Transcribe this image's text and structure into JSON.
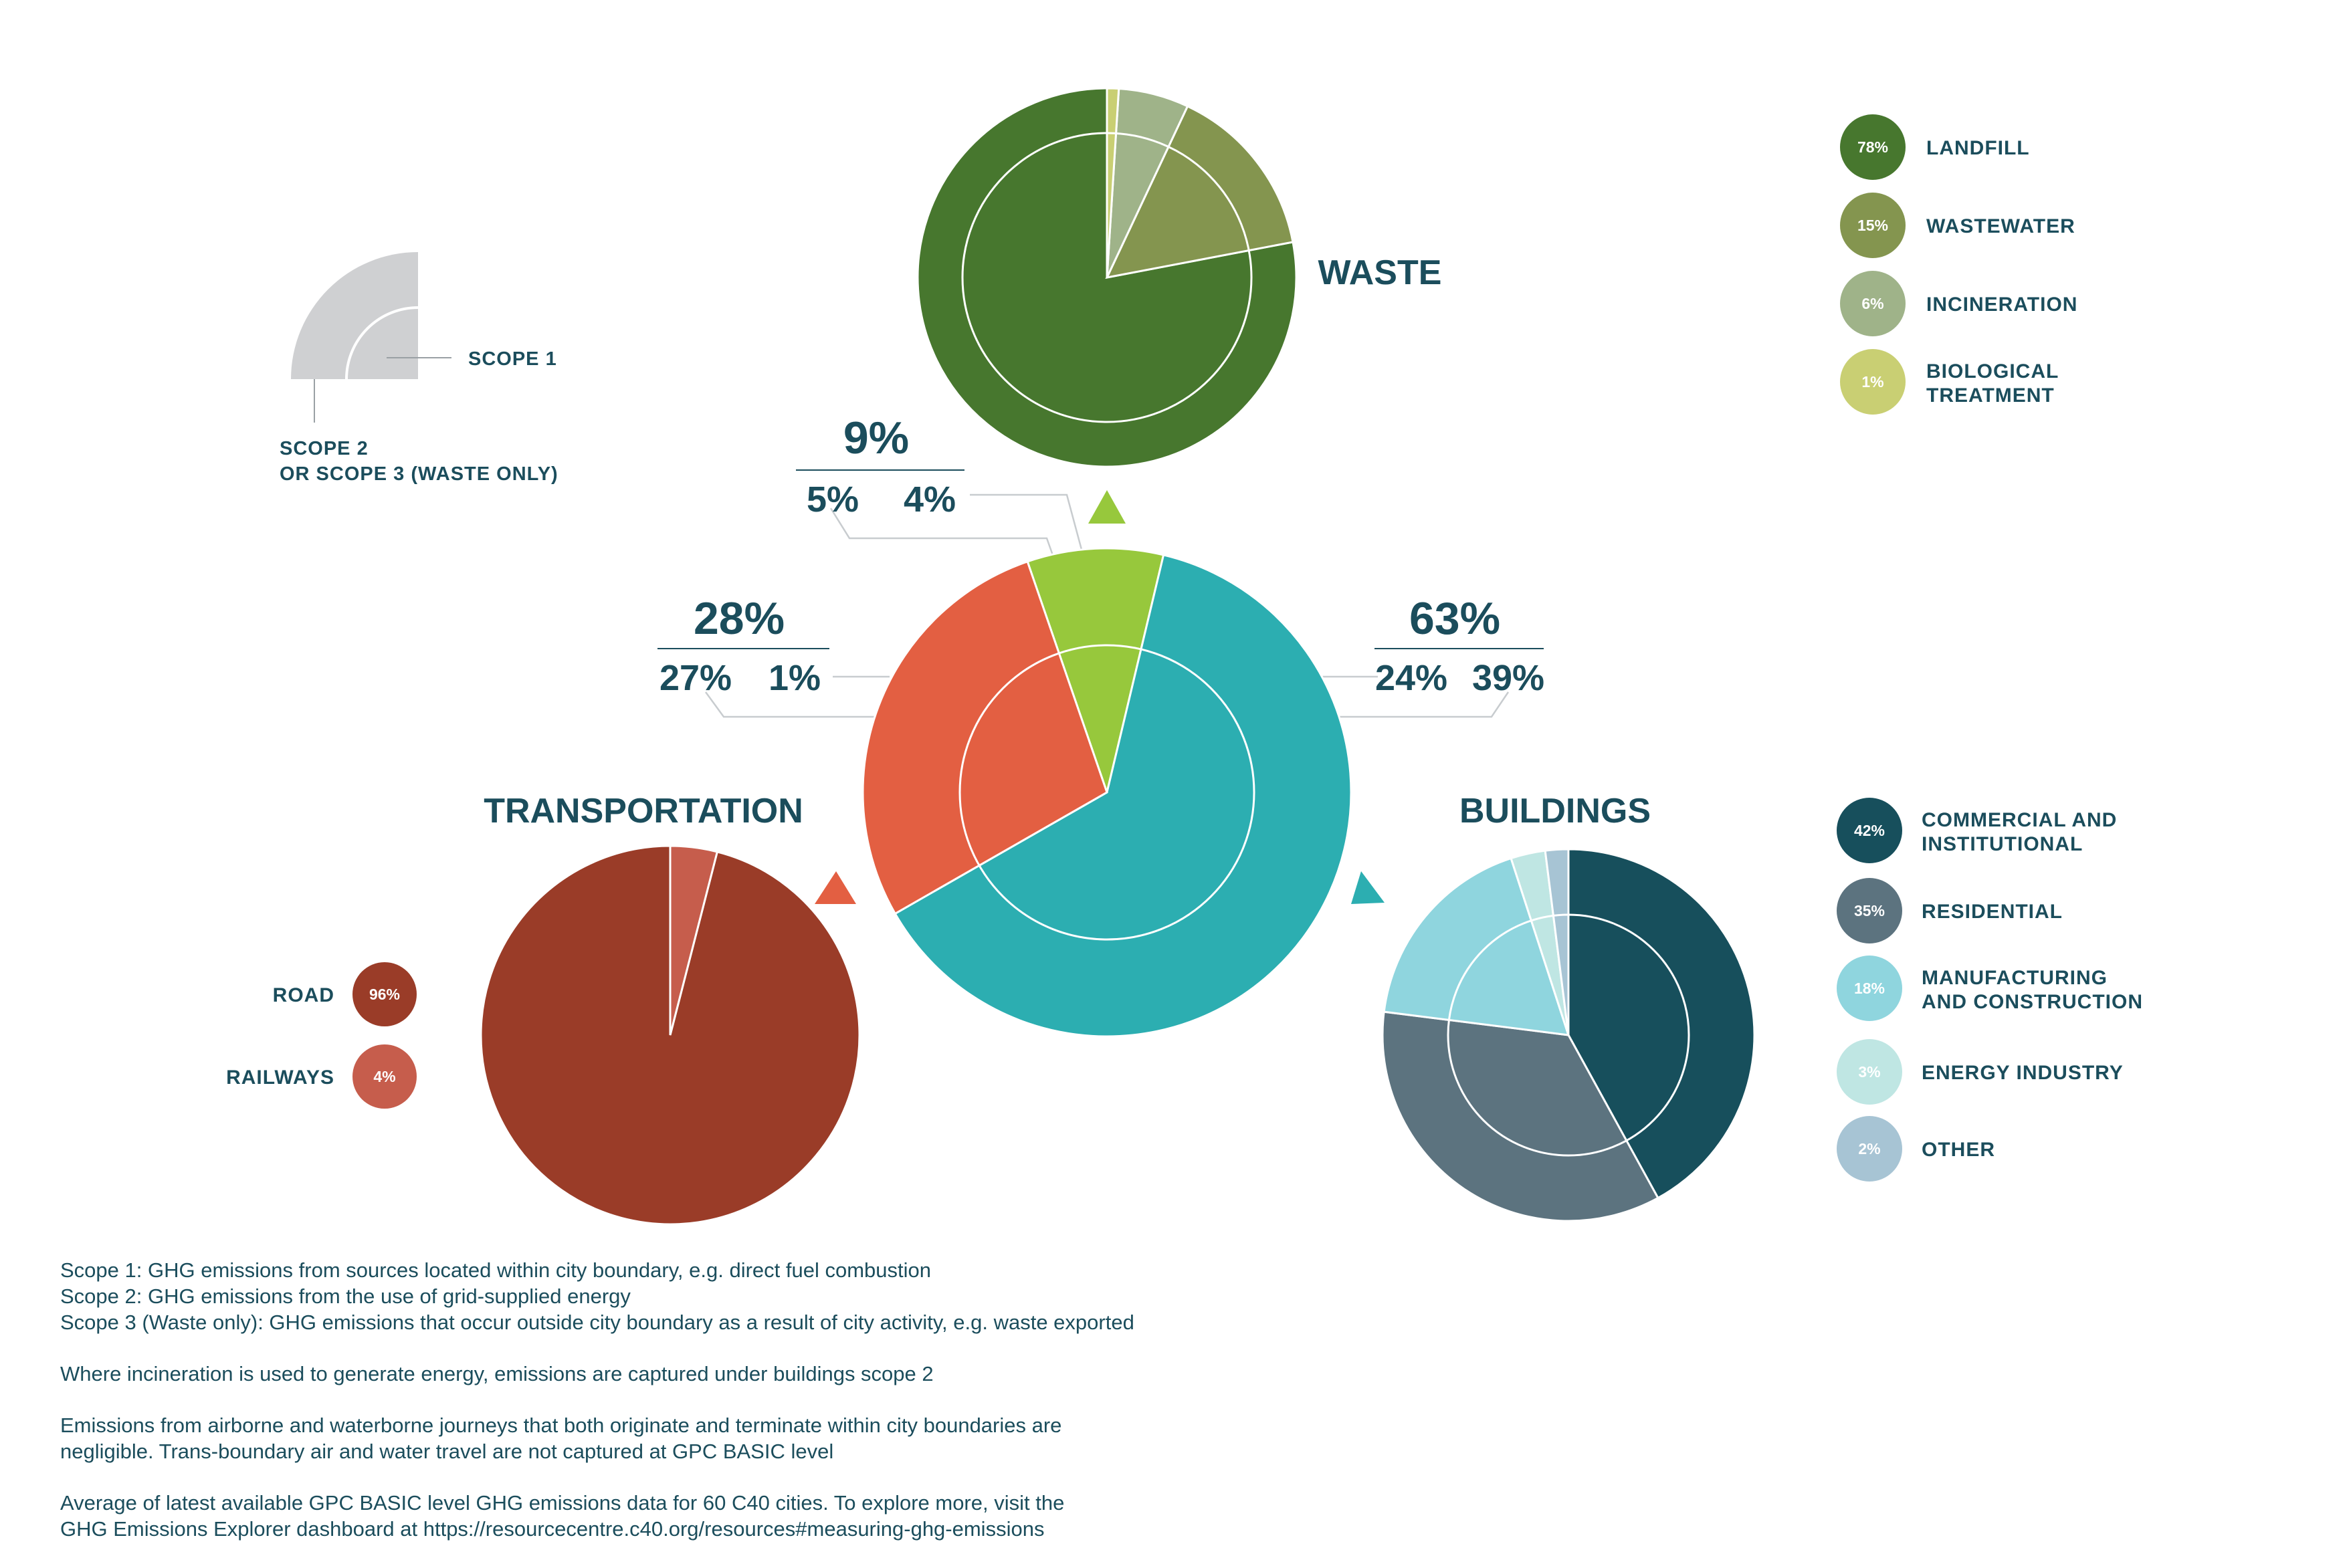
{
  "chart_data": [
    {
      "type": "pie",
      "name": "overall",
      "values": [
        {
          "label": "Waste",
          "total": "9%",
          "scope1": "5%",
          "scope2": "4%",
          "value": 9,
          "color": "#97c83c"
        },
        {
          "label": "Buildings",
          "total": "63%",
          "scope1": "24%",
          "scope2": "39%",
          "value": 63,
          "color": "#2caeb1"
        },
        {
          "label": "Transportation",
          "total": "28%",
          "scope1": "27%",
          "scope2": "1%",
          "value": 28,
          "color": "#e35f42"
        }
      ]
    },
    {
      "type": "pie",
      "name": "waste",
      "title": "WASTE",
      "legend": [
        {
          "label": "LANDFILL",
          "value": 78,
          "pct": "78%",
          "color": "#47772e"
        },
        {
          "label": "WASTEWATER",
          "value": 15,
          "pct": "15%",
          "color": "#84954f"
        },
        {
          "label": "INCINERATION",
          "value": 6,
          "pct": "6%",
          "color": "#9fb389"
        },
        {
          "label": "BIOLOGICAL TREATMENT",
          "line1": "BIOLOGICAL",
          "line2": "TREATMENT",
          "value": 1,
          "pct": "1%",
          "color": "#c9cf73"
        }
      ]
    },
    {
      "type": "pie",
      "name": "transportation",
      "title": "TRANSPORTATION",
      "legend": [
        {
          "label": "ROAD",
          "value": 96,
          "pct": "96%",
          "color": "#9a3c28"
        },
        {
          "label": "RAILWAYS",
          "value": 4,
          "pct": "4%",
          "color": "#c65d4c"
        }
      ]
    },
    {
      "type": "pie",
      "name": "buildings",
      "title": "BUILDINGS",
      "legend": [
        {
          "label": "COMMERCIAL AND INSTITUTIONAL",
          "line1": "COMMERCIAL AND",
          "line2": "INSTITUTIONAL",
          "value": 42,
          "pct": "42%",
          "color": "#174f5c"
        },
        {
          "label": "RESIDENTIAL",
          "value": 35,
          "pct": "35%",
          "color": "#5c737f"
        },
        {
          "label": "MANUFACTURING AND CONSTRUCTION",
          "line1": "MANUFACTURING",
          "line2": "AND CONSTRUCTION",
          "value": 18,
          "pct": "18%",
          "color": "#8fd5de"
        },
        {
          "label": "ENERGY INDUSTRY",
          "value": 3,
          "pct": "3%",
          "color": "#bfe6e3"
        },
        {
          "label": "OTHER",
          "value": 2,
          "pct": "2%",
          "color": "#a7c4d4"
        }
      ]
    }
  ],
  "scope_legend": {
    "scope1": "SCOPE 1",
    "scope2_line1": "SCOPE 2",
    "scope2_line2": "OR SCOPE 3 (WASTE ONLY)"
  },
  "notes": [
    "Scope 1: GHG emissions from sources located within city boundary, e.g. direct fuel combustion",
    "Scope 2: GHG emissions from the use of grid-supplied energy",
    "Scope 3 (Waste only): GHG emissions that occur outside city boundary as a result of city activity, e.g. waste exported",
    "",
    "Where incineration is used to generate energy, emissions are captured under buildings scope 2",
    "",
    "Emissions from airborne and waterborne journeys that both originate and terminate within city boundaries are",
    "negligible. Trans-boundary air and water travel are not captured at GPC BASIC level",
    "",
    "Average of latest available GPC BASIC level GHG emissions data for 60 C40 cities. To explore more, visit the",
    "GHG Emissions Explorer dashboard at https://resourcecentre.c40.org/resources#measuring-ghg-emissions"
  ]
}
